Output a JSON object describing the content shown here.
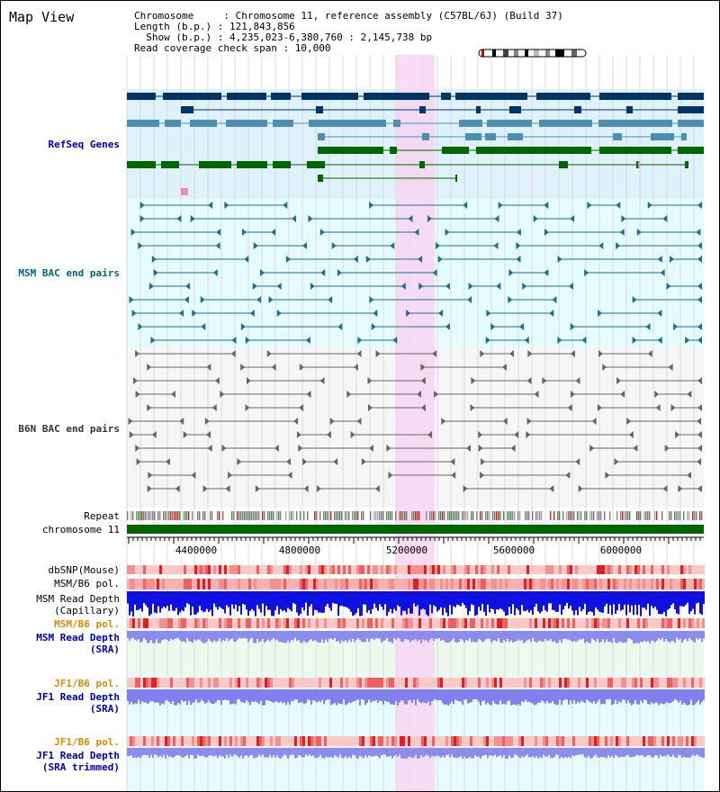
{
  "header": {
    "title": "Map View",
    "chromosome_line": "Chromosome     : Chromosome 11, reference assembly (C57BL/6J) (Build 37)",
    "length_line": "Length (b.p.) : 121,843,856",
    "show_line": "  Show (b.p.) : 4,235,023-6,380,760 : 2,145,738 bp",
    "span_line": "Read coverage check span : 10,000"
  },
  "tracks": {
    "refseq": "RefSeq Genes",
    "msm_bac": "MSM BAC end pairs",
    "b6n_bac": "B6N BAC end pairs",
    "repeat": "Repeat",
    "chromosome": "chromosome 11",
    "dbsnp": "dbSNP(Mouse)",
    "msm_b6_pol_1": "MSM/B6 pol.",
    "msm_read_depth_cap_1": "MSM Read Depth",
    "msm_read_depth_cap_2": "(Capillary)",
    "msm_b6_pol_2": "MSM/B6 pol.",
    "msm_read_depth_sra_1": "MSM Read Depth",
    "msm_read_depth_sra_2": "(SRA)",
    "jf1_b6_pol_1": "JF1/B6 pol.",
    "jf1_read_depth_sra_1": "JF1 Read Depth",
    "jf1_read_depth_sra_2": "(SRA)",
    "jf1_b6_pol_2": "JF1/B6 pol.",
    "jf1_read_depth_trim_1": "JF1 Read Depth",
    "jf1_read_depth_trim_2": "(SRA trimmed)"
  },
  "axis": {
    "ticks": [
      "4400000",
      "4800000",
      "5200000",
      "5600000",
      "6000000"
    ]
  },
  "colors": {
    "refseq_label": "#0000aa",
    "msm_bac_label": "#006680",
    "b6n_label": "#333333",
    "pol_label": "#e08800",
    "depth_label": "#0000aa",
    "highlight": "#f8d8f4",
    "chromosome_bar": "#006600"
  }
}
